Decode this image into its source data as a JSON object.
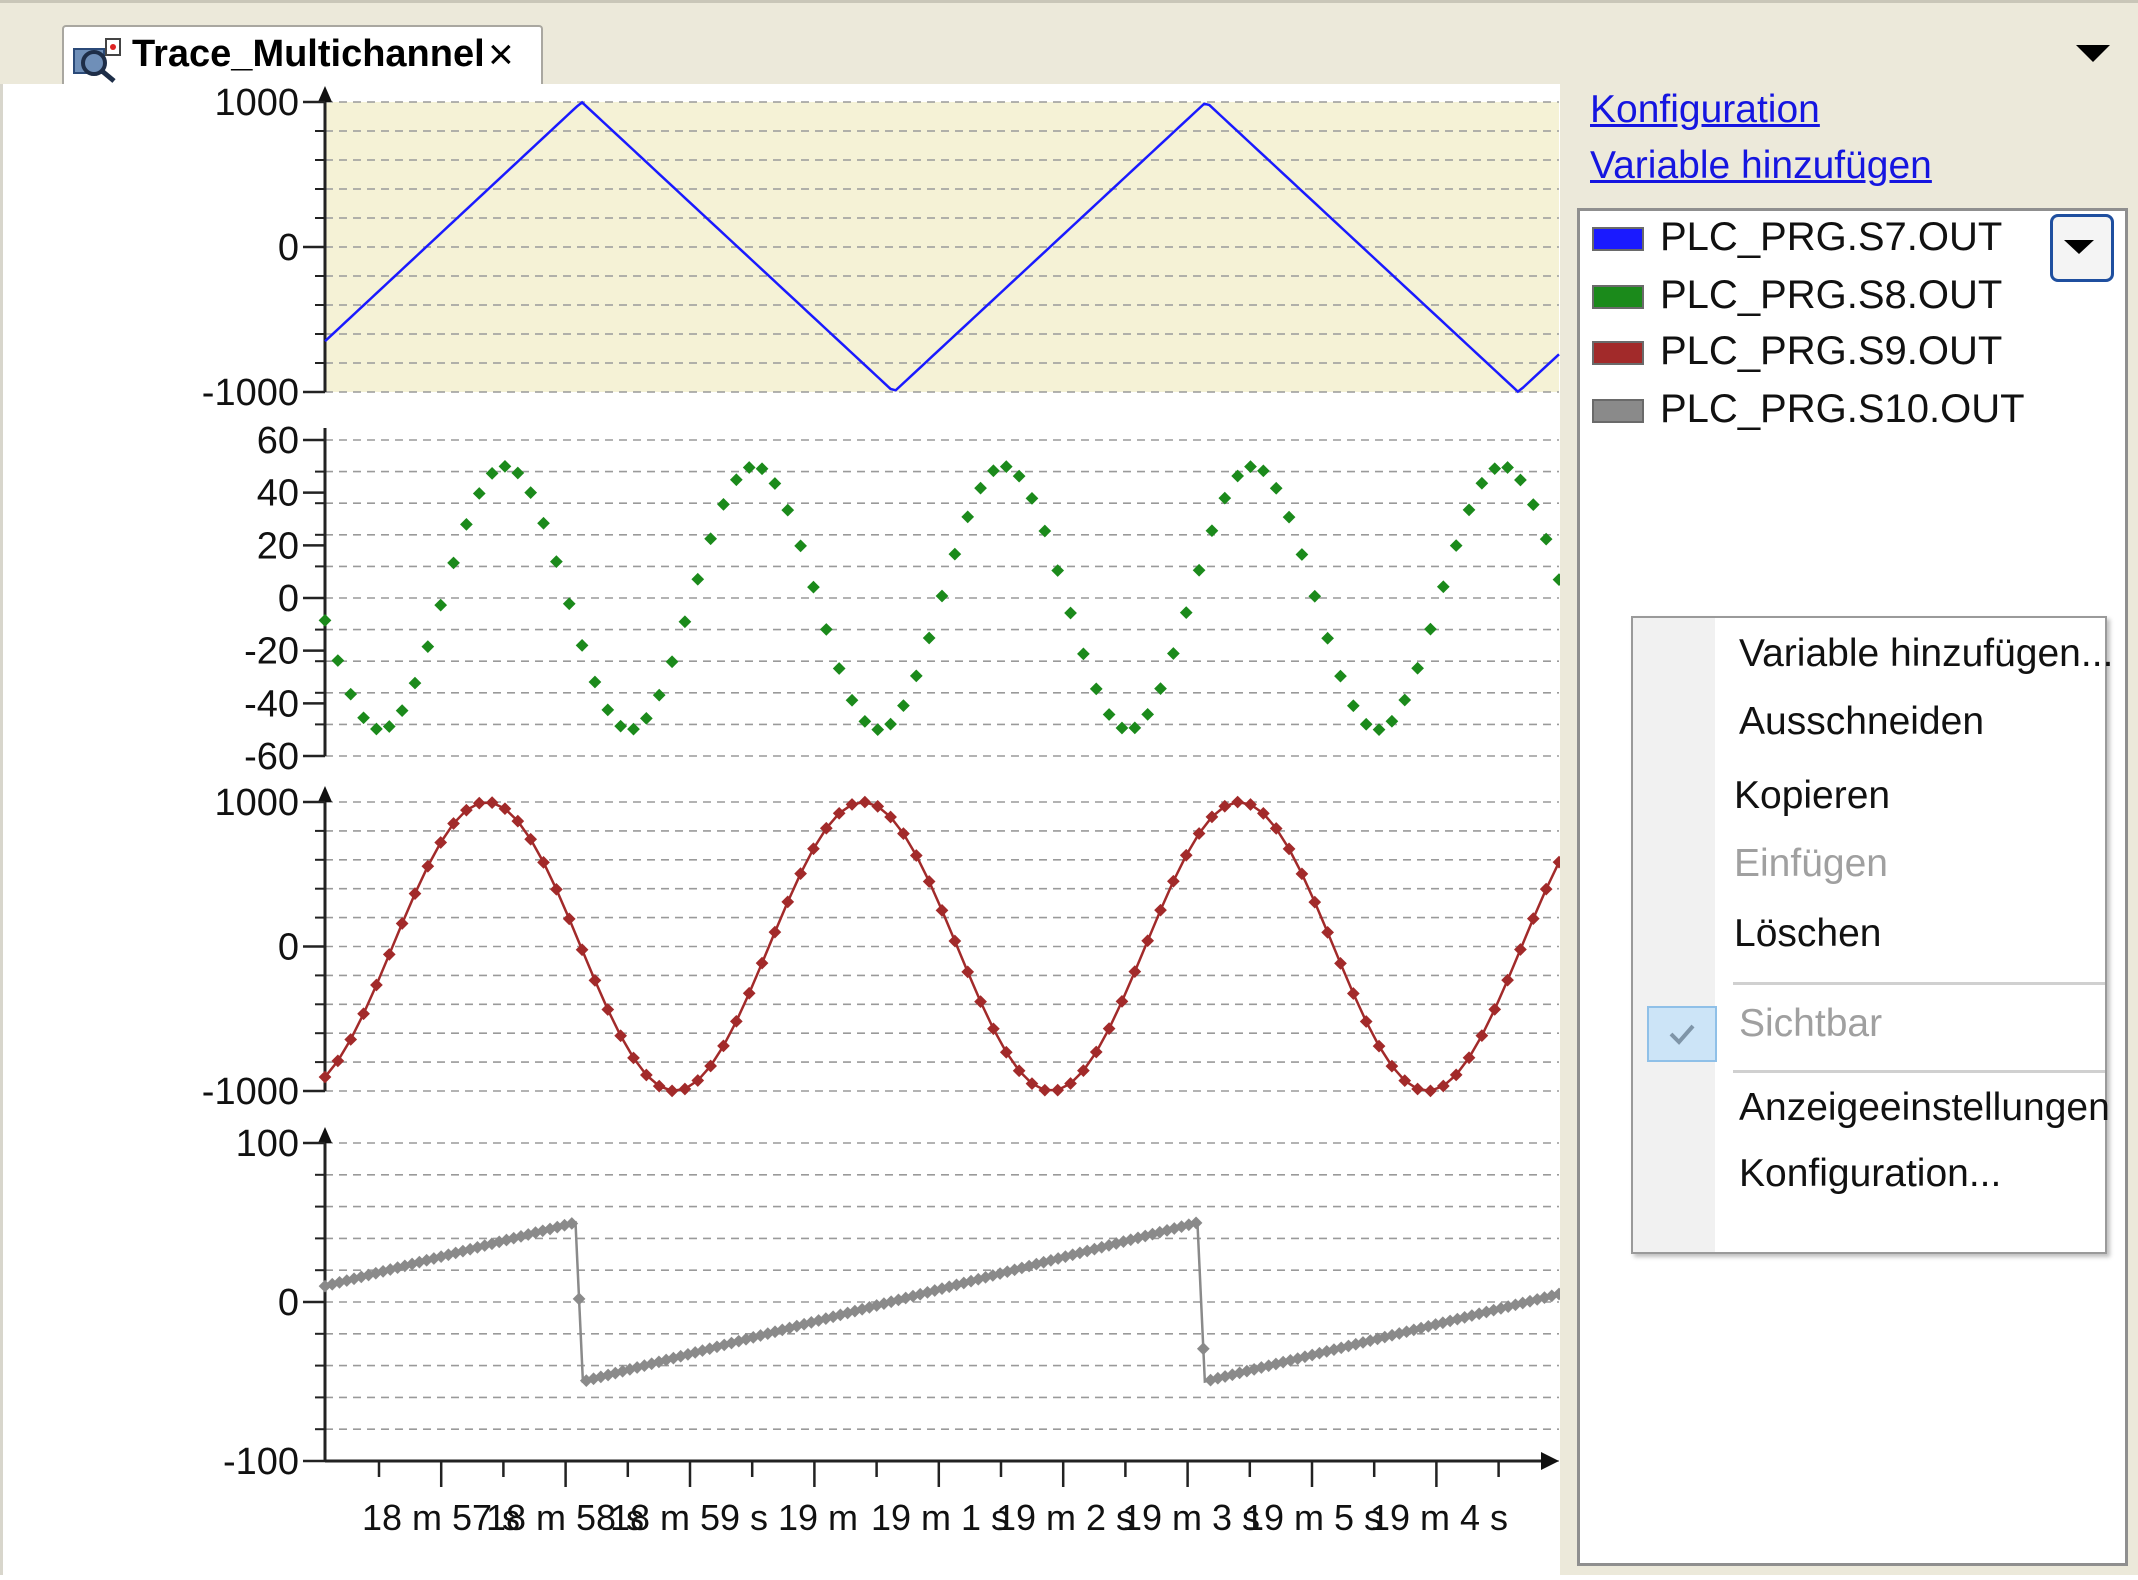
{
  "tab": {
    "title": "Trace_Multichannel",
    "close_glyph": "×",
    "icon": "trace-icon"
  },
  "links": {
    "configuration": "Konfiguration",
    "add_variable": "Variable hinzufügen"
  },
  "variables": [
    {
      "name": "PLC_PRG.S7.OUT",
      "color": "#1a1aff"
    },
    {
      "name": "PLC_PRG.S8.OUT",
      "color": "#1b8a1b"
    },
    {
      "name": "PLC_PRG.S9.OUT",
      "color": "#a22a2a"
    },
    {
      "name": "PLC_PRG.S10.OUT",
      "color": "#8a8a8a"
    }
  ],
  "context_menu": {
    "add_variable": "Variable hinzufügen...",
    "cut": "Ausschneiden",
    "copy": "Kopieren",
    "paste": "Einfügen",
    "delete": "Löschen",
    "visible": "Sichtbar",
    "display_settings": "Anzeigeeinstellungen",
    "configuration": "Konfiguration..."
  },
  "chart_data": {
    "type": "line",
    "x_ticks": [
      "18 m 57 s",
      "18 m 58 s",
      "18 m 59 s",
      "19 m",
      "19 m 1 s",
      "19 m 2 s",
      "19 m 3 s",
      "19 m 5 s",
      "19 m 4 s"
    ],
    "panels": [
      {
        "series": "PLC_PRG.S7.OUT",
        "color": "#1a1aff",
        "shape": "triangle",
        "ylim": [
          -1000,
          1000
        ],
        "yticks": [
          "1000",
          "0",
          "-1000"
        ],
        "background": "#f5f2d6",
        "markers": false,
        "points": [
          [
            0,
            -650
          ],
          [
            0.208,
            1000
          ],
          [
            0.461,
            -1000
          ],
          [
            0.714,
            1000
          ],
          [
            0.967,
            -1000
          ],
          [
            1.0,
            -740
          ]
        ]
      },
      {
        "series": "PLC_PRG.S8.OUT",
        "color": "#1b8a1b",
        "shape": "sine",
        "ylim": [
          -60,
          60
        ],
        "yticks": [
          "60",
          "40",
          "20",
          "0",
          "-20",
          "-40",
          "-60"
        ],
        "amplitude": 50,
        "period": 0.202,
        "phase_x": 0.146,
        "markers": true,
        "line": false
      },
      {
        "series": "PLC_PRG.S9.OUT",
        "color": "#a22a2a",
        "shape": "sine",
        "ylim": [
          -1000,
          1000
        ],
        "yticks": [
          "1000",
          "0",
          "-1000"
        ],
        "amplitude": 1000,
        "period": 0.305,
        "phase_x": 0.131,
        "markers": true,
        "line": true
      },
      {
        "series": "PLC_PRG.S10.OUT",
        "color": "#8a8a8a",
        "shape": "sawtooth",
        "ylim": [
          -100,
          100
        ],
        "yticks": [
          "100",
          "0",
          "-100"
        ],
        "markers": true,
        "line": true,
        "points": [
          [
            0,
            10
          ],
          [
            0.203,
            50
          ],
          [
            0.209,
            -50
          ],
          [
            0.707,
            50
          ],
          [
            0.713,
            -50
          ],
          [
            1.0,
            5
          ]
        ]
      }
    ]
  }
}
